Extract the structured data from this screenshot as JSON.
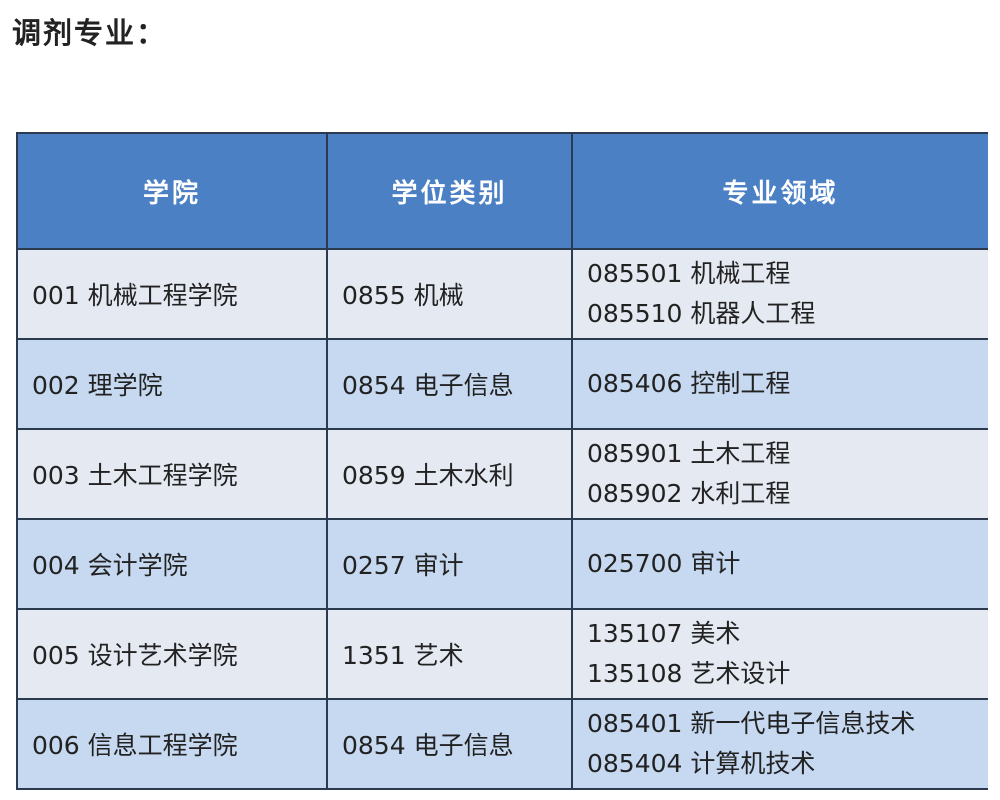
{
  "title": "调剂专业：",
  "table": {
    "headers": [
      "学院",
      "学位类别",
      "专业领域"
    ],
    "rows": [
      {
        "college": "001 机械工程学院",
        "degree": "0855 机械",
        "fields": [
          "085501 机械工程",
          "085510 机器人工程"
        ]
      },
      {
        "college": "002 理学院",
        "degree": "0854 电子信息",
        "fields": [
          "085406 控制工程"
        ]
      },
      {
        "college": "003 土木工程学院",
        "degree": "0859 土木水利",
        "fields": [
          "085901 土木工程",
          "085902 水利工程"
        ]
      },
      {
        "college": "004 会计学院",
        "degree": "0257 审计",
        "fields": [
          "025700 审计"
        ]
      },
      {
        "college": "005 设计艺术学院",
        "degree": "1351 艺术",
        "fields": [
          "135107 美术",
          "135108 艺术设计"
        ]
      },
      {
        "college": "006 信息工程学院",
        "degree": "0854 电子信息",
        "fields": [
          "085401 新一代电子信息技术",
          "085404 计算机技术"
        ]
      }
    ]
  },
  "colors": {
    "header": "#4b80c4",
    "row_light": "#e4e9f2",
    "row_blue": "#c6d9f1"
  }
}
